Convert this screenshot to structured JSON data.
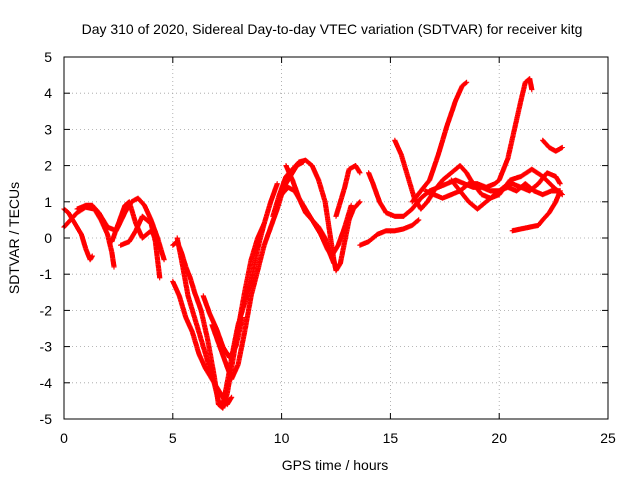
{
  "chart_data": {
    "type": "scatter",
    "title": "Day 310 of 2020, Sidereal Day-to-day VTEC variation (SDTVAR) for receiver kitg",
    "xlabel": "GPS time / hours",
    "ylabel": "SDTVAR / TECUs",
    "xlim": [
      0,
      25
    ],
    "ylim": [
      -5,
      5
    ],
    "xticks": [
      0,
      5,
      10,
      15,
      20,
      25
    ],
    "yticks": [
      -5,
      -4,
      -3,
      -2,
      -1,
      0,
      1,
      2,
      3,
      4,
      5
    ],
    "grid": true,
    "marker": "plus",
    "color": "#ff0000",
    "tracks": [
      [
        [
          0.0,
          0.8
        ],
        [
          0.2,
          0.7
        ],
        [
          0.5,
          0.4
        ],
        [
          0.8,
          0.1
        ],
        [
          1.0,
          -0.3
        ],
        [
          1.2,
          -0.6
        ],
        [
          1.3,
          -0.5
        ]
      ],
      [
        [
          0.0,
          0.3
        ],
        [
          0.3,
          0.5
        ],
        [
          0.6,
          0.7
        ],
        [
          1.0,
          0.85
        ],
        [
          1.4,
          0.8
        ],
        [
          1.7,
          0.5
        ],
        [
          2.0,
          0.1
        ],
        [
          2.2,
          -0.4
        ],
        [
          2.3,
          -0.8
        ]
      ],
      [
        [
          0.6,
          0.8
        ],
        [
          1.0,
          0.9
        ],
        [
          1.3,
          0.9
        ],
        [
          1.6,
          0.7
        ],
        [
          2.0,
          0.3
        ],
        [
          2.4,
          0.2
        ],
        [
          2.8,
          0.7
        ],
        [
          3.1,
          1.0
        ],
        [
          3.4,
          1.1
        ],
        [
          3.7,
          0.9
        ],
        [
          4.0,
          0.5
        ],
        [
          4.3,
          0.0
        ],
        [
          4.5,
          -0.4
        ],
        [
          4.6,
          -0.6
        ]
      ],
      [
        [
          2.2,
          -0.1
        ],
        [
          2.5,
          0.4
        ],
        [
          2.8,
          0.9
        ],
        [
          3.0,
          1.0
        ],
        [
          3.3,
          0.4
        ],
        [
          3.6,
          0.0
        ],
        [
          4.0,
          0.2
        ],
        [
          4.2,
          0.0
        ],
        [
          4.4,
          -0.3
        ]
      ],
      [
        [
          2.6,
          -0.2
        ],
        [
          3.0,
          -0.1
        ],
        [
          3.3,
          0.2
        ],
        [
          3.6,
          0.6
        ],
        [
          4.0,
          0.4
        ],
        [
          4.2,
          -0.1
        ],
        [
          4.3,
          -0.6
        ],
        [
          4.4,
          -1.1
        ]
      ],
      [
        [
          5.0,
          -0.2
        ],
        [
          5.2,
          -0.1
        ],
        [
          5.4,
          -0.4
        ],
        [
          5.6,
          -0.8
        ],
        [
          5.8,
          -1.1
        ],
        [
          6.0,
          -1.5
        ],
        [
          6.3,
          -2.0
        ],
        [
          6.6,
          -2.8
        ],
        [
          6.9,
          -3.8
        ],
        [
          7.1,
          -4.6
        ],
        [
          7.3,
          -4.7
        ],
        [
          7.5,
          -4.3
        ],
        [
          7.7,
          -3.6
        ],
        [
          8.0,
          -2.5
        ],
        [
          8.3,
          -1.5
        ],
        [
          8.6,
          -0.6
        ],
        [
          8.9,
          0.0
        ],
        [
          9.2,
          0.4
        ],
        [
          9.5,
          1.0
        ],
        [
          9.8,
          1.5
        ]
      ],
      [
        [
          5.2,
          0.0
        ],
        [
          5.4,
          -0.6
        ],
        [
          5.7,
          -1.6
        ],
        [
          6.0,
          -2.2
        ],
        [
          6.3,
          -2.8
        ],
        [
          6.6,
          -3.4
        ],
        [
          6.9,
          -4.0
        ],
        [
          7.1,
          -4.5
        ],
        [
          7.3,
          -4.6
        ],
        [
          7.5,
          -4.0
        ],
        [
          7.8,
          -3.0
        ],
        [
          8.0,
          -2.4
        ],
        [
          8.3,
          -1.8
        ],
        [
          8.6,
          -1.2
        ],
        [
          8.9,
          -0.3
        ],
        [
          9.2,
          0.4
        ]
      ],
      [
        [
          5.0,
          -1.2
        ],
        [
          5.3,
          -1.6
        ],
        [
          5.6,
          -2.2
        ],
        [
          5.9,
          -2.6
        ],
        [
          6.2,
          -3.2
        ],
        [
          6.5,
          -3.6
        ],
        [
          6.9,
          -4.0
        ],
        [
          7.2,
          -4.3
        ],
        [
          7.5,
          -4.6
        ],
        [
          7.7,
          -4.4
        ]
      ],
      [
        [
          6.4,
          -1.6
        ],
        [
          6.7,
          -2.1
        ],
        [
          7.0,
          -2.5
        ],
        [
          7.3,
          -3.0
        ],
        [
          7.6,
          -3.3
        ],
        [
          7.9,
          -3.0
        ],
        [
          8.2,
          -2.2
        ]
      ],
      [
        [
          6.8,
          -2.4
        ],
        [
          7.1,
          -2.9
        ],
        [
          7.4,
          -3.4
        ],
        [
          7.7,
          -3.9
        ],
        [
          8.0,
          -3.5
        ],
        [
          8.3,
          -2.6
        ],
        [
          8.6,
          -1.6
        ],
        [
          8.9,
          -0.9
        ],
        [
          9.2,
          -0.2
        ],
        [
          9.5,
          0.3
        ],
        [
          9.8,
          0.8
        ],
        [
          10.1,
          1.4
        ],
        [
          10.4,
          1.7
        ],
        [
          10.7,
          2.0
        ],
        [
          11.0,
          2.1
        ]
      ],
      [
        [
          9.6,
          0.6
        ],
        [
          9.9,
          1.2
        ],
        [
          10.2,
          1.7
        ],
        [
          10.5,
          1.9
        ],
        [
          10.8,
          2.1
        ],
        [
          11.1,
          2.15
        ],
        [
          11.4,
          2.0
        ],
        [
          11.7,
          1.6
        ],
        [
          12.0,
          1.0
        ],
        [
          12.2,
          0.2
        ],
        [
          12.4,
          -0.6
        ],
        [
          12.5,
          -0.9
        ],
        [
          12.7,
          -0.7
        ],
        [
          12.9,
          -0.1
        ],
        [
          13.1,
          0.5
        ],
        [
          13.3,
          0.8
        ],
        [
          13.6,
          1.0
        ]
      ],
      [
        [
          10.0,
          1.2
        ],
        [
          10.3,
          1.4
        ],
        [
          10.6,
          1.3
        ],
        [
          10.9,
          1.0
        ],
        [
          11.2,
          0.7
        ],
        [
          11.5,
          0.4
        ],
        [
          11.8,
          0.1
        ],
        [
          12.1,
          -0.3
        ],
        [
          12.3,
          -0.5
        ],
        [
          12.6,
          -0.2
        ],
        [
          12.9,
          0.3
        ],
        [
          13.2,
          0.9
        ]
      ],
      [
        [
          10.2,
          2.0
        ],
        [
          10.5,
          1.6
        ],
        [
          10.8,
          1.1
        ],
        [
          11.1,
          0.7
        ],
        [
          11.4,
          0.5
        ],
        [
          11.7,
          0.3
        ],
        [
          12.0,
          0.0
        ],
        [
          12.2,
          -0.4
        ],
        [
          12.4,
          -0.7
        ]
      ],
      [
        [
          12.5,
          0.6
        ],
        [
          12.7,
          1.0
        ],
        [
          12.9,
          1.4
        ],
        [
          13.1,
          1.9
        ],
        [
          13.4,
          2.0
        ],
        [
          13.6,
          1.8
        ]
      ],
      [
        [
          13.6,
          -0.2
        ],
        [
          14.0,
          -0.1
        ],
        [
          14.4,
          0.1
        ],
        [
          14.8,
          0.2
        ],
        [
          15.2,
          0.2
        ],
        [
          15.6,
          0.25
        ],
        [
          16.0,
          0.35
        ],
        [
          16.3,
          0.5
        ]
      ],
      [
        [
          14.0,
          1.8
        ],
        [
          14.2,
          1.5
        ],
        [
          14.5,
          1.0
        ],
        [
          14.8,
          0.7
        ],
        [
          15.2,
          0.6
        ],
        [
          15.6,
          0.6
        ],
        [
          16.0,
          0.8
        ],
        [
          16.4,
          1.1
        ],
        [
          16.8,
          1.3
        ],
        [
          17.2,
          1.4
        ],
        [
          17.6,
          1.5
        ],
        [
          18.0,
          1.6
        ],
        [
          18.4,
          1.5
        ],
        [
          18.8,
          1.4
        ],
        [
          19.2,
          1.4
        ],
        [
          19.6,
          1.3
        ],
        [
          20.0,
          1.3
        ],
        [
          20.4,
          1.4
        ],
        [
          20.8,
          1.3
        ],
        [
          21.2,
          1.5
        ],
        [
          21.6,
          1.3
        ],
        [
          22.0,
          1.2
        ],
        [
          22.4,
          1.3
        ],
        [
          22.8,
          1.3
        ]
      ],
      [
        [
          15.2,
          2.7
        ],
        [
          15.5,
          2.3
        ],
        [
          15.8,
          1.7
        ],
        [
          16.1,
          1.1
        ],
        [
          16.4,
          0.8
        ],
        [
          16.7,
          1.0
        ],
        [
          17.0,
          1.3
        ],
        [
          17.4,
          1.6
        ],
        [
          17.8,
          1.8
        ],
        [
          18.2,
          2.0
        ],
        [
          18.5,
          1.8
        ],
        [
          18.8,
          1.5
        ],
        [
          19.2,
          1.2
        ],
        [
          19.6,
          1.1
        ],
        [
          20.0,
          1.2
        ],
        [
          20.5,
          1.6
        ],
        [
          21.0,
          1.7
        ],
        [
          21.5,
          1.9
        ],
        [
          22.0,
          1.7
        ],
        [
          22.5,
          1.4
        ],
        [
          22.9,
          1.2
        ]
      ],
      [
        [
          16.0,
          1.0
        ],
        [
          16.4,
          1.3
        ],
        [
          16.8,
          1.6
        ],
        [
          17.2,
          2.3
        ],
        [
          17.6,
          3.1
        ],
        [
          18.0,
          3.8
        ],
        [
          18.3,
          4.2
        ],
        [
          18.5,
          4.3
        ]
      ],
      [
        [
          16.6,
          1.3
        ],
        [
          17.0,
          1.2
        ],
        [
          17.4,
          1.1
        ],
        [
          17.8,
          1.2
        ],
        [
          18.2,
          1.3
        ],
        [
          18.6,
          1.5
        ],
        [
          19.0,
          1.5
        ],
        [
          19.4,
          1.4
        ],
        [
          19.8,
          1.5
        ],
        [
          20.0,
          1.6
        ],
        [
          20.4,
          2.2
        ],
        [
          20.7,
          3.0
        ],
        [
          21.0,
          3.8
        ],
        [
          21.2,
          4.3
        ],
        [
          21.4,
          4.4
        ],
        [
          21.5,
          4.1
        ]
      ],
      [
        [
          17.8,
          1.6
        ],
        [
          18.2,
          1.3
        ],
        [
          18.6,
          1.0
        ],
        [
          19.0,
          0.8
        ],
        [
          19.4,
          1.0
        ],
        [
          19.8,
          1.2
        ],
        [
          20.2,
          1.4
        ],
        [
          20.6,
          1.5
        ],
        [
          21.0,
          1.4
        ],
        [
          21.4,
          1.3
        ],
        [
          21.8,
          1.5
        ],
        [
          22.2,
          1.8
        ],
        [
          22.6,
          1.7
        ],
        [
          22.8,
          1.5
        ]
      ],
      [
        [
          20.6,
          0.2
        ],
        [
          21.0,
          0.25
        ],
        [
          21.4,
          0.3
        ],
        [
          21.8,
          0.35
        ],
        [
          22.0,
          0.5
        ],
        [
          22.3,
          0.7
        ],
        [
          22.6,
          1.0
        ],
        [
          22.8,
          1.3
        ]
      ],
      [
        [
          22.0,
          2.7
        ],
        [
          22.3,
          2.5
        ],
        [
          22.6,
          2.4
        ],
        [
          22.9,
          2.5
        ]
      ]
    ]
  }
}
